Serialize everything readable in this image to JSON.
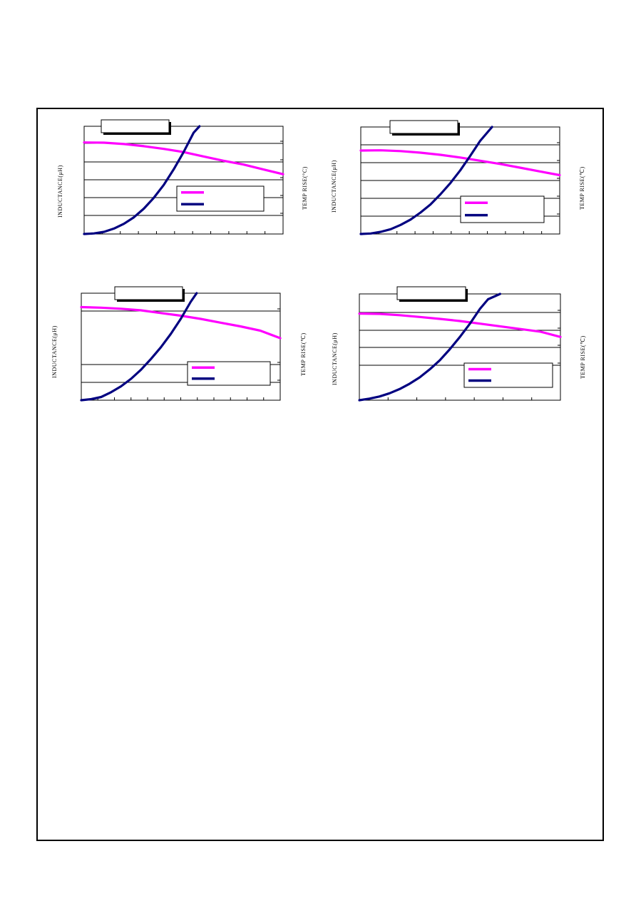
{
  "colors": {
    "inductance": "#ff00ff",
    "temp_rise": "#000080",
    "frame": "#000000"
  },
  "chart_data": [
    {
      "type": "line",
      "title": "",
      "ylabel_left": "INDUCTANCE(μH)",
      "ylabel_right": "TEMP  RISE(°C)",
      "grid": true,
      "legend": "bottom-right",
      "series": [
        {
          "color": "#ff00ff",
          "x": [
            0,
            0.1,
            0.2,
            0.3,
            0.4,
            0.5,
            0.6,
            0.7,
            0.8,
            0.9,
            1.0
          ],
          "y": [
            0.85,
            0.848,
            0.835,
            0.815,
            0.79,
            0.76,
            0.72,
            0.68,
            0.645,
            0.6,
            0.555
          ]
        },
        {
          "color": "#000080",
          "x": [
            0,
            0.05,
            0.1,
            0.15,
            0.2,
            0.25,
            0.3,
            0.35,
            0.4,
            0.45,
            0.5,
            0.55,
            0.58
          ],
          "y": [
            0,
            0.005,
            0.02,
            0.05,
            0.095,
            0.155,
            0.235,
            0.335,
            0.455,
            0.6,
            0.76,
            0.94,
            1.0
          ]
        }
      ]
    },
    {
      "type": "line",
      "title": "",
      "ylabel_left": "INDUCTANCE(μH)",
      "ylabel_right": "TEMP  RISE(℃)",
      "grid": true,
      "legend": "bottom-right",
      "series": [
        {
          "color": "#ff00ff",
          "x": [
            0,
            0.1,
            0.2,
            0.3,
            0.4,
            0.5,
            0.6,
            0.7,
            0.8,
            0.9,
            1.0
          ],
          "y": [
            0.78,
            0.782,
            0.775,
            0.76,
            0.74,
            0.715,
            0.685,
            0.655,
            0.62,
            0.585,
            0.55
          ]
        },
        {
          "color": "#000080",
          "x": [
            0,
            0.05,
            0.1,
            0.15,
            0.2,
            0.25,
            0.3,
            0.35,
            0.4,
            0.45,
            0.5,
            0.55,
            0.6,
            0.66
          ],
          "y": [
            0,
            0.005,
            0.02,
            0.045,
            0.085,
            0.135,
            0.2,
            0.275,
            0.37,
            0.475,
            0.595,
            0.73,
            0.87,
            1.0
          ]
        }
      ]
    },
    {
      "type": "line",
      "title": "",
      "ylabel_left": "INDUCTANCE(μH)",
      "ylabel_right": "TEMP  RISE(℃)",
      "grid": true,
      "legend": "bottom-right",
      "series": [
        {
          "color": "#ff00ff",
          "x": [
            0,
            0.1,
            0.2,
            0.3,
            0.4,
            0.5,
            0.6,
            0.7,
            0.8,
            0.9,
            1.0
          ],
          "y": [
            0.87,
            0.865,
            0.855,
            0.84,
            0.815,
            0.79,
            0.76,
            0.725,
            0.69,
            0.65,
            0.58
          ]
        },
        {
          "color": "#000080",
          "x": [
            0,
            0.05,
            0.1,
            0.15,
            0.2,
            0.25,
            0.3,
            0.35,
            0.4,
            0.45,
            0.5,
            0.55,
            0.58
          ],
          "y": [
            0,
            0.01,
            0.03,
            0.075,
            0.13,
            0.2,
            0.285,
            0.385,
            0.495,
            0.62,
            0.76,
            0.92,
            1.0
          ]
        }
      ]
    },
    {
      "type": "line",
      "title": "",
      "ylabel_left": "INDUCTANCE(μH)",
      "ylabel_right": "TEMP  RISE(℃)",
      "grid": true,
      "legend": "bottom-right",
      "series": [
        {
          "color": "#ff00ff",
          "x": [
            0,
            0.1,
            0.2,
            0.3,
            0.4,
            0.5,
            0.6,
            0.7,
            0.8,
            0.9,
            1.0
          ],
          "y": [
            0.815,
            0.812,
            0.8,
            0.783,
            0.765,
            0.745,
            0.72,
            0.695,
            0.67,
            0.645,
            0.595
          ]
        },
        {
          "color": "#000080",
          "x": [
            0,
            0.05,
            0.1,
            0.15,
            0.2,
            0.25,
            0.3,
            0.35,
            0.4,
            0.45,
            0.5,
            0.55,
            0.6,
            0.64,
            0.7
          ],
          "y": [
            0,
            0.015,
            0.035,
            0.065,
            0.105,
            0.155,
            0.215,
            0.29,
            0.375,
            0.48,
            0.595,
            0.72,
            0.86,
            0.95,
            1.0
          ]
        }
      ]
    }
  ]
}
